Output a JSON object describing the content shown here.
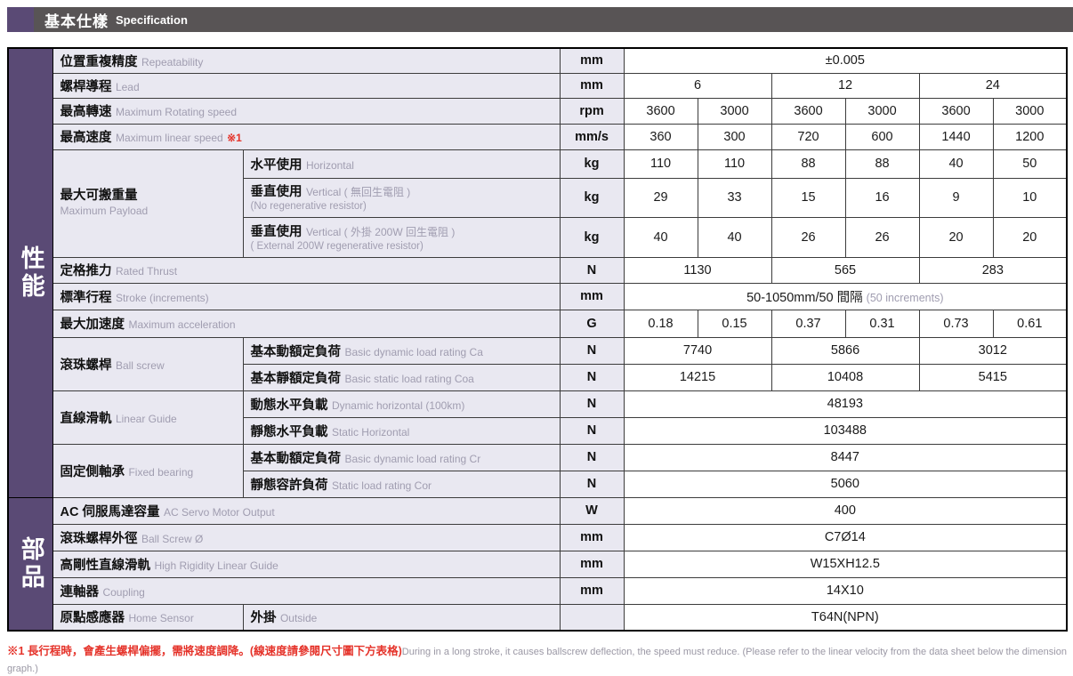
{
  "header": {
    "title_zh": "基本仕樣",
    "title_en": "Specification"
  },
  "sections": [
    {
      "label": "性能",
      "row_count": 16
    },
    {
      "label": "部品",
      "row_count": 5
    }
  ],
  "table": {
    "rows": [
      {
        "full": true,
        "label": {
          "zh": "位置重複精度",
          "en": "Repeatability"
        },
        "unit": "mm",
        "values": [
          {
            "t": "±0.005",
            "s": 6
          }
        ]
      },
      {
        "full": true,
        "label": {
          "zh": "螺桿導程",
          "en": "Lead"
        },
        "unit": "mm",
        "values": [
          {
            "t": "6",
            "s": 2
          },
          {
            "t": "12",
            "s": 2
          },
          {
            "t": "24",
            "s": 2
          }
        ]
      },
      {
        "full": true,
        "label": {
          "zh": "最高轉速",
          "en": "Maximum Rotating speed"
        },
        "unit": "rpm",
        "values": [
          {
            "t": "3600",
            "s": 1
          },
          {
            "t": "3000",
            "s": 1
          },
          {
            "t": "3600",
            "s": 1
          },
          {
            "t": "3000",
            "s": 1
          },
          {
            "t": "3600",
            "s": 1
          },
          {
            "t": "3000",
            "s": 1
          }
        ]
      },
      {
        "full": true,
        "label": {
          "zh": "最高速度",
          "en": "Maximum linear speed",
          "note": "※1"
        },
        "unit": "mm/s",
        "values": [
          {
            "t": "360",
            "s": 1
          },
          {
            "t": "300",
            "s": 1
          },
          {
            "t": "720",
            "s": 1
          },
          {
            "t": "600",
            "s": 1
          },
          {
            "t": "1440",
            "s": 1
          },
          {
            "t": "1200",
            "s": 1
          }
        ]
      },
      {
        "group": {
          "zh": "最大可搬重量",
          "en": "Maximum Payload",
          "rowspan": 3,
          "stack": true
        },
        "label": {
          "zh": "水平使用",
          "en": "Horizontal"
        },
        "unit": "kg",
        "values": [
          {
            "t": "110",
            "s": 1
          },
          {
            "t": "110",
            "s": 1
          },
          {
            "t": "88",
            "s": 1
          },
          {
            "t": "88",
            "s": 1
          },
          {
            "t": "40",
            "s": 1
          },
          {
            "t": "50",
            "s": 1
          }
        ]
      },
      {
        "label": {
          "zh": "垂直使用",
          "en": "Vertical ( 無回生電阻 )",
          "en2": "(No regenerative resistor)"
        },
        "unit": "kg",
        "values": [
          {
            "t": "29",
            "s": 1
          },
          {
            "t": "33",
            "s": 1
          },
          {
            "t": "15",
            "s": 1
          },
          {
            "t": "16",
            "s": 1
          },
          {
            "t": "9",
            "s": 1
          },
          {
            "t": "10",
            "s": 1
          }
        ]
      },
      {
        "label": {
          "zh": "垂直使用",
          "en": "Vertical ( 外掛 200W 回生電阻 )",
          "en2": "( External 200W regenerative resistor)"
        },
        "unit": "kg",
        "values": [
          {
            "t": "40",
            "s": 1
          },
          {
            "t": "40",
            "s": 1
          },
          {
            "t": "26",
            "s": 1
          },
          {
            "t": "26",
            "s": 1
          },
          {
            "t": "20",
            "s": 1
          },
          {
            "t": "20",
            "s": 1
          }
        ]
      },
      {
        "full": true,
        "label": {
          "zh": "定格推力",
          "en": "Rated Thrust"
        },
        "unit": "N",
        "values": [
          {
            "t": "1130",
            "s": 2
          },
          {
            "t": "565",
            "s": 2
          },
          {
            "t": "283",
            "s": 2
          }
        ]
      },
      {
        "full": true,
        "label": {
          "zh": "標準行程",
          "en": "Stroke (increments)"
        },
        "unit": "mm",
        "values": [
          {
            "t": "50-1050mm/50 間隔",
            "g": "(50 increments)",
            "s": 6
          }
        ]
      },
      {
        "full": true,
        "label": {
          "zh": "最大加速度",
          "en": "Maximum acceleration"
        },
        "unit": "G",
        "values": [
          {
            "t": "0.18",
            "s": 1
          },
          {
            "t": "0.15",
            "s": 1
          },
          {
            "t": "0.37",
            "s": 1
          },
          {
            "t": "0.31",
            "s": 1
          },
          {
            "t": "0.73",
            "s": 1
          },
          {
            "t": "0.61",
            "s": 1
          }
        ]
      },
      {
        "group": {
          "zh": "滾珠螺桿",
          "en": "Ball screw",
          "rowspan": 2
        },
        "label": {
          "zh": "基本動額定負荷",
          "en": "Basic dynamic load rating Ca"
        },
        "unit": "N",
        "values": [
          {
            "t": "7740",
            "s": 2
          },
          {
            "t": "5866",
            "s": 2
          },
          {
            "t": "3012",
            "s": 2
          }
        ]
      },
      {
        "label": {
          "zh": "基本靜額定負荷",
          "en": "Basic static load rating Coa"
        },
        "unit": "N",
        "values": [
          {
            "t": "14215",
            "s": 2
          },
          {
            "t": "10408",
            "s": 2
          },
          {
            "t": "5415",
            "s": 2
          }
        ]
      },
      {
        "group": {
          "zh": "直線滑軌",
          "en": "Linear Guide",
          "rowspan": 2
        },
        "label": {
          "zh": "動態水平負載",
          "en": "Dynamic horizontal (100km)"
        },
        "unit": "N",
        "values": [
          {
            "t": "48193",
            "s": 6
          }
        ]
      },
      {
        "label": {
          "zh": "靜態水平負載",
          "en": "Static Horizontal"
        },
        "unit": "N",
        "values": [
          {
            "t": "103488",
            "s": 6
          }
        ]
      },
      {
        "group": {
          "zh": "固定側軸承",
          "en": "Fixed bearing",
          "rowspan": 2
        },
        "label": {
          "zh": "基本動額定負荷",
          "en": "Basic dynamic load rating Cr"
        },
        "unit": "N",
        "values": [
          {
            "t": "8447",
            "s": 6
          }
        ]
      },
      {
        "label": {
          "zh": "靜態容許負荷",
          "en": "Static load rating Cor"
        },
        "unit": "N",
        "values": [
          {
            "t": "5060",
            "s": 6
          }
        ]
      },
      {
        "full": true,
        "label": {
          "zh": "AC 伺服馬達容量",
          "en": "AC Servo Motor Output"
        },
        "unit": "W",
        "values": [
          {
            "t": "400",
            "s": 6
          }
        ]
      },
      {
        "full": true,
        "label": {
          "zh": "滾珠螺桿外徑",
          "en": "Ball Screw Ø"
        },
        "unit": "mm",
        "values": [
          {
            "t": "C7Ø14",
            "s": 6
          }
        ]
      },
      {
        "full": true,
        "label": {
          "zh": "高剛性直線滑軌",
          "en": "High Rigidity Linear Guide"
        },
        "unit": "mm",
        "values": [
          {
            "t": "W15XH12.5",
            "s": 6
          }
        ]
      },
      {
        "full": true,
        "label": {
          "zh": "連軸器",
          "en": "Coupling"
        },
        "unit": "mm",
        "values": [
          {
            "t": "14X10",
            "s": 6
          }
        ]
      },
      {
        "group": {
          "zh": "原點感應器",
          "en": "Home Sensor",
          "rowspan": 1
        },
        "label": {
          "zh": "外掛",
          "en": "Outside"
        },
        "unit": "",
        "values": [
          {
            "t": "T64N(NPN)",
            "s": 6
          }
        ]
      }
    ]
  },
  "footnote": {
    "zh": "※1 長行程時，會產生螺桿偏擺，需將速度調降。(線速度請參閱尺寸圖下方表格)",
    "en": "During in a long stroke, it causes ballscrew deflection, the speed must reduce. (Please refer to the linear velocity from the data sheet below the dimension graph.)"
  },
  "colors": {
    "accent_purple": "#5a4a75",
    "header_gray": "#585455",
    "label_bg": "#e9e8f1",
    "footnote_red": "#e5332a",
    "secondary_gray": "#a09db0"
  }
}
